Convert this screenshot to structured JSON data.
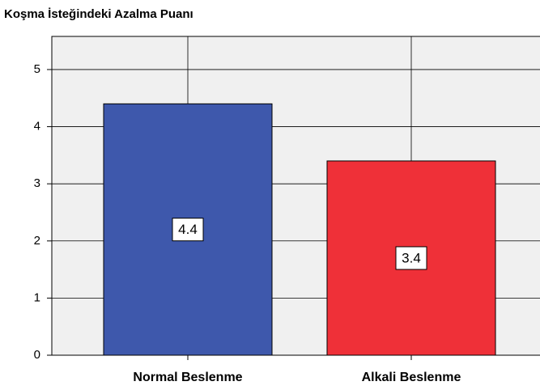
{
  "chart_data": {
    "type": "bar",
    "title": "Koşma İsteğindeki Azalma Puanı",
    "categories": [
      "Normal Beslenme",
      "Alkali Beslenme"
    ],
    "values": [
      4.4,
      3.4
    ],
    "colors": [
      "#3e58ac",
      "#ef3038"
    ],
    "ylim": [
      0,
      5.58
    ],
    "yticks": [
      0,
      1,
      2,
      3,
      4,
      5
    ],
    "grid": true
  }
}
